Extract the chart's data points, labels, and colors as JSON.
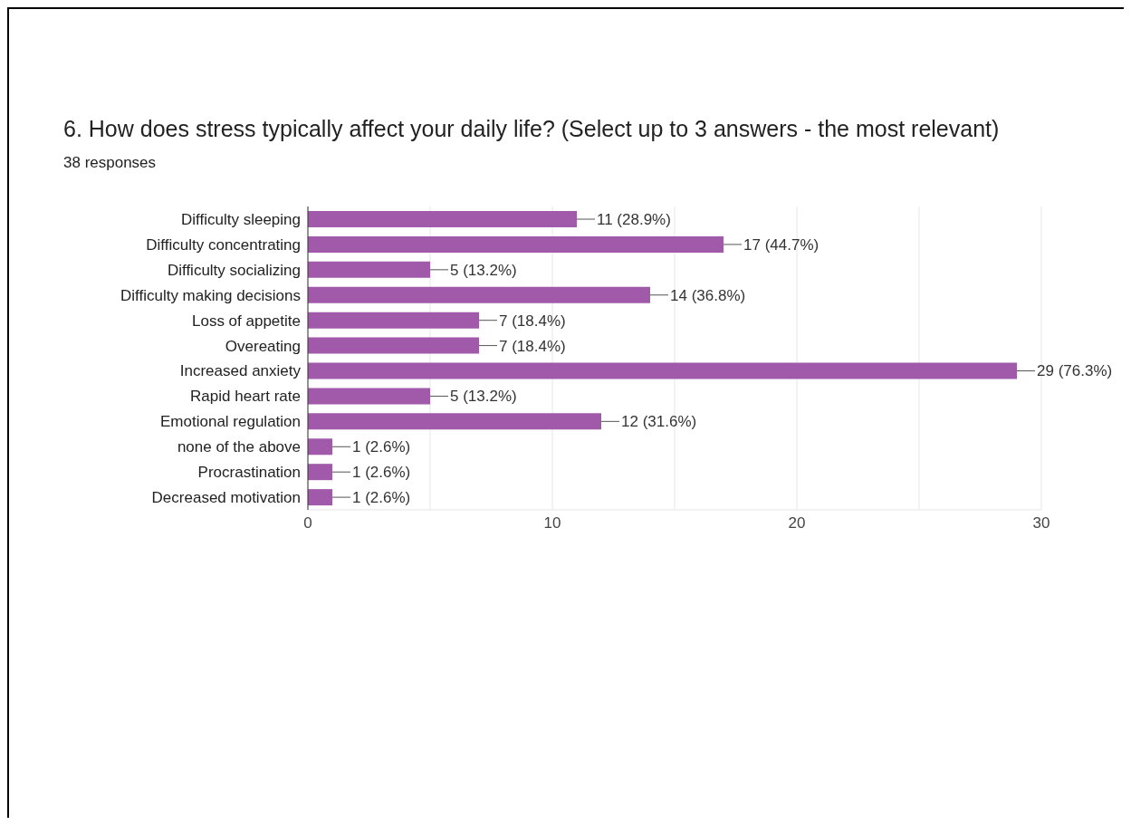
{
  "chart_data": {
    "type": "bar",
    "orientation": "horizontal",
    "title": "6. How does stress typically affect your daily life? (Select up to 3 answers - the most relevant)",
    "subtitle": "38 responses",
    "categories": [
      "Difficulty sleeping",
      "Difficulty concentrating",
      "Difficulty socializing",
      "Difficulty making decisions",
      "Loss of appetite",
      "Overeating",
      "Increased anxiety",
      "Rapid heart rate",
      "Emotional regulation",
      "none of the above",
      "Procrastination",
      "Decreased motivation"
    ],
    "values": [
      11,
      17,
      5,
      14,
      7,
      7,
      29,
      5,
      12,
      1,
      1,
      1
    ],
    "value_labels": [
      "11 (28.9%)",
      "17 (44.7%)",
      "5 (13.2%)",
      "14 (36.8%)",
      "7 (18.4%)",
      "7 (18.4%)",
      "29 (76.3%)",
      "5 (13.2%)",
      "12 (31.6%)",
      "1 (2.6%)",
      "1 (2.6%)",
      "1 (2.6%)"
    ],
    "color": "#a05aa9",
    "xlim": [
      0,
      30
    ],
    "xticks": [
      0,
      {
        "value": 5,
        "label": null
      },
      10,
      {
        "value": 15,
        "label": null
      },
      20,
      {
        "value": 25,
        "label": null
      },
      30
    ],
    "grid": "x"
  }
}
